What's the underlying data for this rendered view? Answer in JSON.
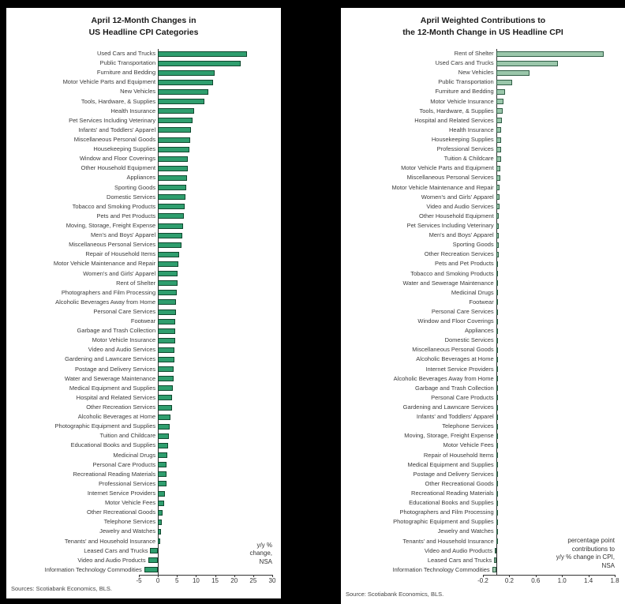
{
  "chart_data": [
    {
      "type": "bar",
      "orientation": "horizontal",
      "title_lines": [
        "April 12-Month Changes in",
        "US Headline CPI Categories"
      ],
      "note": "y/y %\nchange,\nNSA",
      "source": "Sources: Scotiabank Economics, BLS.",
      "xlim": [
        -5,
        30
      ],
      "xticks": [
        -5,
        0,
        5,
        10,
        15,
        20,
        25,
        30
      ],
      "xtick_labels": [
        "-5",
        "0",
        "5",
        "10",
        "15",
        "20",
        "25",
        "30"
      ],
      "grid": false,
      "legend": false,
      "bar_fill": "#2f9e6e",
      "bar_border": "#10492f",
      "categories": [
        "Used Cars and Trucks",
        "Public Transportation",
        "Furniture and Bedding",
        "Motor Vehicle Parts and Equipment",
        "New Vehicles",
        "Tools, Hardware, & Supplies",
        "Health Insurance",
        "Pet Services Including Veterinary",
        "Infants' and Toddlers' Apparel",
        "Miscellaneous Personal Goods",
        "Housekeeping Supplies",
        "Window and Floor Coverings",
        "Other Household Equipment",
        "Appliances",
        "Sporting Goods",
        "Domestic Services",
        "Tobacco and Smoking Products",
        "Pets and Pet Products",
        "Moving, Storage, Freight Expense",
        "Men's and Boys' Apparel",
        "Miscellaneous Personal Services",
        "Repair of Household Items",
        "Motor Vehicle Maintenance and Repair",
        "Women's and Girls' Apparel",
        "Rent of Shelter",
        "Photographers and Film Processing",
        "Alcoholic Beverages Away from Home",
        "Personal Care Services",
        "Footwear",
        "Garbage and Trash Collection",
        "Motor Vehicle Insurance",
        "Video and Audio Services",
        "Gardening and Lawncare Services",
        "Postage and Delivery Services",
        "Water and Sewerage Maintenance",
        "Medical Equipment and Supplies",
        "Hospital and Related Services",
        "Other Recreation Services",
        "Alcoholic Beverages at Home",
        "Photographic Equipment and Supplies",
        "Tuition and Childcare",
        "Educational Books and Supplies",
        "Medicinal Drugs",
        "Personal Care Products",
        "Recreational Reading Materials",
        "Professional Services",
        "Internet Service Providers",
        "Motor Vehicle Fees",
        "Other Recreational Goods",
        "Telephone Services",
        "Jewelry and Watches",
        "Tenants' and Household Insurance",
        "Leased Cars and Trucks",
        "Video and Audio Products",
        "Information Technology Commodities"
      ],
      "values": [
        23.4,
        21.7,
        14.9,
        14.5,
        13.3,
        12.2,
        9.5,
        9.1,
        8.7,
        8.5,
        8.3,
        7.9,
        7.8,
        7.6,
        7.4,
        7.2,
        7.0,
        6.8,
        6.6,
        6.4,
        6.2,
        5.6,
        5.4,
        5.2,
        5.1,
        5.0,
        4.8,
        4.7,
        4.6,
        4.5,
        4.5,
        4.4,
        4.3,
        4.2,
        4.1,
        3.9,
        3.8,
        3.6,
        3.3,
        3.1,
        2.8,
        2.6,
        2.4,
        2.3,
        2.3,
        2.2,
        1.9,
        1.6,
        1.3,
        1.1,
        0.8,
        0.5,
        -2.0,
        -2.6,
        -3.6
      ]
    },
    {
      "type": "bar",
      "orientation": "horizontal",
      "title_lines": [
        "April Weighted Contributions to",
        "the 12-Month Change in US Headline CPI"
      ],
      "note": "percentage point\ncontributions to\ny/y % change in CPI,\nNSA",
      "source": "Source: Scotiabank Economics, BLS.",
      "xlim": [
        -0.2,
        1.8
      ],
      "xticks": [
        -0.2,
        0.2,
        0.6,
        1.0,
        1.4,
        1.8
      ],
      "xtick_labels": [
        "-0.2",
        "0.2",
        "0.6",
        "1.0",
        "1.4",
        "1.8"
      ],
      "grid": false,
      "legend": false,
      "bar_fill": "#9bc7ab",
      "bar_border": "#2f5d45",
      "categories": [
        "Rent of Shelter",
        "Used Cars and Trucks",
        "New Vehicles",
        "Public Transportation",
        "Furniture and Bedding",
        "Motor Vehicle Insurance",
        "Tools, Hardware, & Supplies",
        "Hospital and Related Services",
        "Health Insurance",
        "Housekeeping Supplies",
        "Professional Services",
        "Tuition & Childcare",
        "Motor Vehicle Parts and Equipment",
        "Miscellaneous Personal Services",
        "Motor Vehicle Maintenance and Repair",
        "Women's and Girls' Apparel",
        "Video and Audio Services",
        "Other Household Equipment",
        "Pet Services Including Veterinary",
        "Men's and Boys' Apparel",
        "Sporting Goods",
        "Other Recreation Services",
        "Pets and Pet Products",
        "Tobacco and Smoking Products",
        "Water and Sewerage Maintenance",
        "Medicinal Drugs",
        "Footwear",
        "Personal Care Services",
        "Window and Floor Coverings",
        "Appliances",
        "Domestic Services",
        "Miscellaneous Personal Goods",
        "Alcoholic Beverages at Home",
        "Internet Service Providers",
        "Alcoholic Beverages Away from Home",
        "Garbage and Trash Collection",
        "Personal Care Products",
        "Gardening and Lawncare Services",
        "Infants' and Toddlers' Apparel",
        "Telephone Services",
        "Moving, Storage, Freight Expense",
        "Motor Vehicle Fees",
        "Repair of Household Items",
        "Medical Equipment and Supplies",
        "Postage and Delivery Services",
        "Other Recreational Goods",
        "Recreational Reading Materials",
        "Educational Books and Supplies",
        "Photographers and Film Processing",
        "Photographic Equipment and Supplies",
        "Jewelry and Watches",
        "Tenants' and Household Insurance",
        "Video and Audio Products",
        "Leased Cars and Trucks",
        "Information Technology Commodities"
      ],
      "values": [
        1.63,
        0.94,
        0.51,
        0.24,
        0.14,
        0.11,
        0.1,
        0.09,
        0.08,
        0.08,
        0.07,
        0.07,
        0.06,
        0.06,
        0.05,
        0.05,
        0.05,
        0.04,
        0.04,
        0.04,
        0.04,
        0.04,
        0.03,
        0.03,
        0.03,
        0.03,
        0.03,
        0.03,
        0.02,
        0.02,
        0.02,
        0.02,
        0.02,
        0.02,
        0.02,
        0.02,
        0.02,
        0.01,
        0.01,
        0.01,
        0.01,
        0.01,
        0.01,
        0.01,
        0.01,
        0.01,
        0.01,
        0.01,
        0.01,
        0.01,
        0.01,
        0.005,
        -0.02,
        -0.03,
        -0.06
      ]
    }
  ]
}
